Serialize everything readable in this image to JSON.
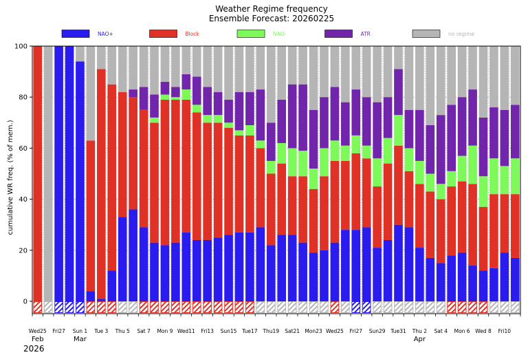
{
  "colors": {
    "nao_plus": "#2a1bef",
    "block": "#e03127",
    "nao_minus": "#7df95a",
    "atr": "#7125ab",
    "no_regime": "#b5b5b5",
    "sunday": "#e03127"
  },
  "chart_data": {
    "type": "bar",
    "stacked": true,
    "title": "Weather Regime frequency",
    "subtitle": "Ensemble Forecast: 20260225",
    "ylabel": "cumulative WR freq. (% of mem.)",
    "xlabel": "",
    "ylim": [
      0,
      100
    ],
    "yticks": [
      0,
      20,
      40,
      60,
      80,
      100
    ],
    "grid": true,
    "legend_position": "top",
    "legend": [
      {
        "key": "nao_plus",
        "label": "NAO+"
      },
      {
        "key": "block",
        "label": "Block"
      },
      {
        "key": "nao_minus",
        "label": "NAO-"
      },
      {
        "key": "atr",
        "label": "ATR"
      },
      {
        "key": "no_regime",
        "label": "no regime"
      }
    ],
    "xtick_labels": [
      {
        "index": 0,
        "label": "Wed25",
        "sunday": false
      },
      {
        "index": 2,
        "label": "Fri27",
        "sunday": false
      },
      {
        "index": 4,
        "label": "Sun 1",
        "sunday": true
      },
      {
        "index": 6,
        "label": "Tue 3",
        "sunday": false
      },
      {
        "index": 8,
        "label": "Thu 5",
        "sunday": false
      },
      {
        "index": 10,
        "label": "Sat 7",
        "sunday": false
      },
      {
        "index": 12,
        "label": "Mon 9",
        "sunday": false
      },
      {
        "index": 14,
        "label": "Wed11",
        "sunday": false
      },
      {
        "index": 16,
        "label": "Fri13",
        "sunday": false
      },
      {
        "index": 18,
        "label": "Sun15",
        "sunday": true
      },
      {
        "index": 20,
        "label": "Tue17",
        "sunday": false
      },
      {
        "index": 22,
        "label": "Thu19",
        "sunday": false
      },
      {
        "index": 24,
        "label": "Sat21",
        "sunday": false
      },
      {
        "index": 26,
        "label": "Mon23",
        "sunday": false
      },
      {
        "index": 28,
        "label": "Wed25",
        "sunday": false
      },
      {
        "index": 30,
        "label": "Fri27",
        "sunday": false
      },
      {
        "index": 32,
        "label": "Sun29",
        "sunday": true
      },
      {
        "index": 34,
        "label": "Tue31",
        "sunday": false
      },
      {
        "index": 36,
        "label": "Thu 2",
        "sunday": false
      },
      {
        "index": 38,
        "label": "Sat 4",
        "sunday": false
      },
      {
        "index": 40,
        "label": "Mon 6",
        "sunday": false
      },
      {
        "index": 42,
        "label": "Wed 8",
        "sunday": false
      },
      {
        "index": 44,
        "label": "Fri10",
        "sunday": false
      }
    ],
    "month_labels": [
      {
        "index": 0,
        "label": "Feb"
      },
      {
        "index": 4,
        "label": "Mar"
      },
      {
        "index": 36,
        "label": "Apr"
      }
    ],
    "year_label": "2026",
    "series": [
      {
        "name": "NAO+",
        "key": "nao_plus",
        "values": [
          0,
          0,
          100,
          100,
          94,
          4,
          1,
          12,
          33,
          36,
          29,
          23,
          22,
          23,
          27,
          24,
          24,
          25,
          26,
          27,
          27,
          29,
          22,
          26,
          26,
          23,
          19,
          20,
          23,
          28,
          28,
          29,
          21,
          24,
          30,
          29,
          21,
          17,
          15,
          18,
          19,
          14,
          12,
          13,
          19,
          17
        ]
      },
      {
        "name": "Block",
        "key": "block",
        "values": [
          100,
          0,
          0,
          0,
          0,
          59,
          90,
          73,
          49,
          44,
          46,
          47,
          57,
          56,
          52,
          50,
          46,
          45,
          42,
          38,
          38,
          31,
          28,
          28,
          23,
          26,
          25,
          29,
          32,
          27,
          30,
          27,
          24,
          30,
          31,
          22,
          25,
          26,
          25,
          27,
          28,
          32,
          25,
          29,
          23,
          25
        ]
      },
      {
        "name": "NAO-",
        "key": "nao_minus",
        "values": [
          0,
          0,
          0,
          0,
          0,
          0,
          0,
          0,
          0,
          0,
          0,
          2,
          2,
          1,
          4,
          3,
          3,
          3,
          2,
          2,
          4,
          3,
          5,
          8,
          11,
          10,
          8,
          11,
          8,
          6,
          7,
          5,
          11,
          10,
          12,
          9,
          9,
          7,
          6,
          6,
          10,
          15,
          12,
          14,
          11,
          14
        ]
      },
      {
        "name": "ATR",
        "key": "atr",
        "values": [
          0,
          0,
          0,
          0,
          0,
          0,
          0,
          0,
          0,
          3,
          9,
          9,
          5,
          4,
          6,
          11,
          11,
          9,
          9,
          15,
          13,
          20,
          15,
          17,
          25,
          26,
          23,
          20,
          21,
          17,
          18,
          19,
          22,
          16,
          18,
          15,
          20,
          19,
          27,
          26,
          23,
          22,
          23,
          20,
          22,
          21
        ]
      },
      {
        "name": "no regime",
        "key": "no_regime",
        "values": [
          0,
          100,
          0,
          0,
          6,
          37,
          9,
          15,
          18,
          17,
          16,
          19,
          14,
          16,
          11,
          12,
          16,
          18,
          21,
          18,
          18,
          17,
          30,
          21,
          15,
          15,
          25,
          20,
          16,
          22,
          17,
          20,
          22,
          20,
          9,
          25,
          25,
          31,
          27,
          23,
          20,
          17,
          28,
          24,
          25,
          23
        ]
      }
    ],
    "predicted_regime_key": [
      "block",
      "no_regime",
      "nao_plus",
      "nao_plus",
      "nao_plus",
      "block",
      "block",
      "block",
      "no_regime",
      "no_regime",
      "block",
      "block",
      "block",
      "block",
      "block",
      "block",
      "block",
      "block",
      "block",
      "block",
      "block",
      "no_regime",
      "no_regime",
      "no_regime",
      "no_regime",
      "no_regime",
      "no_regime",
      "no_regime",
      "block",
      "no_regime",
      "nao_plus",
      "nao_plus",
      "no_regime",
      "no_regime",
      "no_regime",
      "no_regime",
      "no_regime",
      "no_regime",
      "no_regime",
      "block",
      "block",
      "block",
      "block",
      "no_regime",
      "no_regime",
      "no_regime"
    ]
  }
}
